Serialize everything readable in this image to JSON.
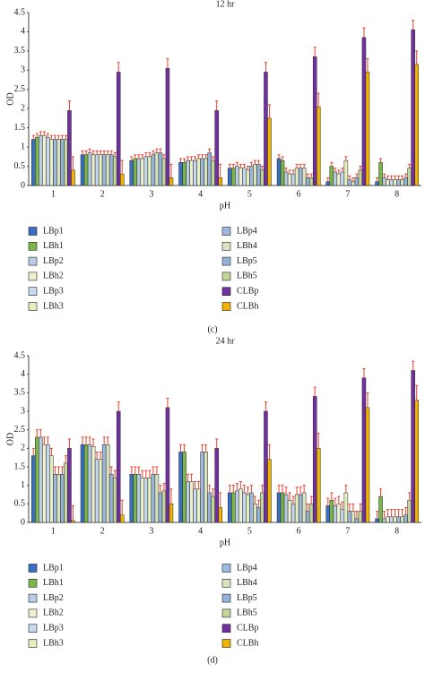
{
  "chart_data": [
    {
      "type": "bar",
      "title": "12 hr",
      "x_label": "pH",
      "y_label": "OD",
      "panel_label": "(c)",
      "categories": [
        "1",
        "2",
        "3",
        "4",
        "5",
        "6",
        "7",
        "8"
      ],
      "ylim": [
        0,
        4.5
      ],
      "yticks": [
        0,
        0.5,
        1,
        1.5,
        2,
        2.5,
        3,
        3.5,
        4,
        4.5
      ],
      "grid": false,
      "error_color": "#e8412c",
      "series": [
        {
          "name": "LBp1",
          "color": "#3a6fc4",
          "values": [
            1.2,
            0.8,
            0.65,
            0.6,
            0.45,
            0.7,
            0.1,
            0.1
          ],
          "errors": [
            0.1,
            0.1,
            0.1,
            0.1,
            0.1,
            0.1,
            0.1,
            0.1
          ]
        },
        {
          "name": "LBh1",
          "color": "#7ab648",
          "values": [
            1.25,
            0.8,
            0.7,
            0.6,
            0.45,
            0.65,
            0.5,
            0.6
          ],
          "errors": [
            0.1,
            0.1,
            0.1,
            0.1,
            0.1,
            0.1,
            0.1,
            0.1
          ]
        },
        {
          "name": "LBp2",
          "color": "#b8cce4",
          "values": [
            1.3,
            0.85,
            0.7,
            0.65,
            0.5,
            0.35,
            0.35,
            0.2
          ],
          "errors": [
            0.1,
            0.1,
            0.1,
            0.1,
            0.1,
            0.1,
            0.1,
            0.1
          ]
        },
        {
          "name": "LBh2",
          "color": "#eef0d0",
          "values": [
            1.3,
            0.8,
            0.7,
            0.65,
            0.45,
            0.3,
            0.3,
            0.15
          ],
          "errors": [
            0.1,
            0.1,
            0.1,
            0.1,
            0.1,
            0.1,
            0.1,
            0.1
          ]
        },
        {
          "name": "LBp3",
          "color": "#c5d9f1",
          "values": [
            1.25,
            0.8,
            0.75,
            0.65,
            0.45,
            0.3,
            0.35,
            0.15
          ],
          "errors": [
            0.1,
            0.1,
            0.1,
            0.1,
            0.1,
            0.1,
            0.1,
            0.1
          ]
        },
        {
          "name": "LBh3",
          "color": "#e4efc0",
          "values": [
            1.2,
            0.8,
            0.75,
            0.7,
            0.4,
            0.45,
            0.65,
            0.15
          ],
          "errors": [
            0.1,
            0.1,
            0.1,
            0.1,
            0.1,
            0.1,
            0.1,
            0.1
          ]
        },
        {
          "name": "LBp4",
          "color": "#9fb8e0",
          "values": [
            1.2,
            0.8,
            0.8,
            0.7,
            0.5,
            0.45,
            0.15,
            0.15
          ],
          "errors": [
            0.1,
            0.1,
            0.1,
            0.1,
            0.1,
            0.1,
            0.1,
            0.1
          ]
        },
        {
          "name": "LBh4",
          "color": "#d7e4bd",
          "values": [
            1.2,
            0.8,
            0.85,
            0.7,
            0.55,
            0.45,
            0.1,
            0.15
          ],
          "errors": [
            0.1,
            0.1,
            0.1,
            0.1,
            0.1,
            0.1,
            0.1,
            0.1
          ]
        },
        {
          "name": "LBp5",
          "color": "#95b3d7",
          "values": [
            1.2,
            0.8,
            0.85,
            0.85,
            0.55,
            0.2,
            0.2,
            0.2
          ],
          "errors": [
            0.1,
            0.1,
            0.1,
            0.1,
            0.1,
            0.1,
            0.1,
            0.1
          ]
        },
        {
          "name": "LBh5",
          "color": "#c3d69b",
          "values": [
            1.2,
            0.75,
            0.7,
            0.65,
            0.4,
            0.2,
            0.4,
            0.45
          ],
          "errors": [
            0.1,
            0.1,
            0.1,
            0.1,
            0.1,
            0.1,
            0.1,
            0.1
          ]
        },
        {
          "name": "CLBp",
          "color": "#7030a0",
          "values": [
            1.95,
            2.95,
            3.05,
            1.95,
            2.95,
            3.35,
            3.85,
            4.05
          ],
          "errors": [
            0.25,
            0.25,
            0.25,
            0.25,
            0.25,
            0.25,
            0.25,
            0.25
          ]
        },
        {
          "name": "CLBh",
          "color": "#f0b400",
          "values": [
            0.4,
            0.3,
            0.2,
            0.2,
            1.75,
            2.05,
            2.95,
            3.15
          ],
          "errors": [
            0.35,
            0.35,
            0.35,
            0.35,
            0.35,
            0.35,
            0.35,
            0.35
          ]
        }
      ]
    },
    {
      "type": "bar",
      "title": "24 hr",
      "x_label": "pH",
      "y_label": "OD",
      "panel_label": "(d)",
      "categories": [
        "1",
        "2",
        "3",
        "4",
        "5",
        "6",
        "7",
        "8"
      ],
      "ylim": [
        0,
        4.5
      ],
      "yticks": [
        0,
        0.5,
        1,
        1.5,
        2,
        2.5,
        3,
        3.5,
        4,
        4.5
      ],
      "grid": false,
      "error_color": "#e8412c",
      "series": [
        {
          "name": "LBp1",
          "color": "#3a6fc4",
          "values": [
            1.8,
            2.1,
            1.3,
            1.9,
            0.8,
            0.8,
            0.45,
            0.1
          ],
          "errors": [
            0.2,
            0.2,
            0.2,
            0.2,
            0.2,
            0.2,
            0.2,
            0.2
          ]
        },
        {
          "name": "LBh1",
          "color": "#7ab648",
          "values": [
            2.3,
            2.1,
            1.3,
            1.9,
            0.8,
            0.8,
            0.6,
            0.7
          ],
          "errors": [
            0.2,
            0.2,
            0.2,
            0.2,
            0.2,
            0.2,
            0.2,
            0.2
          ]
        },
        {
          "name": "LBp2",
          "color": "#b8cce4",
          "values": [
            2.3,
            2.1,
            1.3,
            1.1,
            0.85,
            0.75,
            0.45,
            0.1
          ],
          "errors": [
            0.2,
            0.2,
            0.2,
            0.2,
            0.2,
            0.2,
            0.2,
            0.2
          ]
        },
        {
          "name": "LBh2",
          "color": "#eef0d0",
          "values": [
            2.1,
            2.05,
            1.2,
            1.1,
            0.9,
            0.6,
            0.5,
            0.15
          ],
          "errors": [
            0.2,
            0.2,
            0.2,
            0.2,
            0.2,
            0.2,
            0.2,
            0.2
          ]
        },
        {
          "name": "LBp3",
          "color": "#c5d9f1",
          "values": [
            2.1,
            1.7,
            1.2,
            0.9,
            0.8,
            0.5,
            0.35,
            0.15
          ],
          "errors": [
            0.2,
            0.2,
            0.2,
            0.2,
            0.2,
            0.2,
            0.2,
            0.2
          ]
        },
        {
          "name": "LBh3",
          "color": "#e4efc0",
          "values": [
            1.8,
            1.7,
            1.2,
            0.9,
            0.75,
            0.75,
            0.8,
            0.15
          ],
          "errors": [
            0.2,
            0.2,
            0.2,
            0.2,
            0.2,
            0.2,
            0.2,
            0.2
          ]
        },
        {
          "name": "LBp4",
          "color": "#9fb8e0",
          "values": [
            1.3,
            2.1,
            1.3,
            1.9,
            0.8,
            0.75,
            0.3,
            0.15
          ],
          "errors": [
            0.2,
            0.2,
            0.2,
            0.2,
            0.2,
            0.2,
            0.2,
            0.2
          ]
        },
        {
          "name": "LBh4",
          "color": "#d7e4bd",
          "values": [
            1.3,
            2.1,
            1.3,
            1.9,
            0.5,
            0.8,
            0.3,
            0.15
          ],
          "errors": [
            0.2,
            0.2,
            0.2,
            0.2,
            0.2,
            0.2,
            0.2,
            0.2
          ]
        },
        {
          "name": "LBp5",
          "color": "#95b3d7",
          "values": [
            1.3,
            1.3,
            0.8,
            0.8,
            0.4,
            0.3,
            0.1,
            0.2
          ],
          "errors": [
            0.2,
            0.2,
            0.2,
            0.2,
            0.2,
            0.2,
            0.2,
            0.2
          ]
        },
        {
          "name": "LBh5",
          "color": "#c3d69b",
          "values": [
            1.6,
            1.2,
            0.85,
            0.7,
            0.8,
            0.5,
            0.3,
            0.6
          ],
          "errors": [
            0.2,
            0.2,
            0.2,
            0.2,
            0.2,
            0.2,
            0.2,
            0.2
          ]
        },
        {
          "name": "CLBp",
          "color": "#7030a0",
          "values": [
            2.0,
            3.0,
            3.1,
            2.0,
            3.0,
            3.4,
            3.9,
            4.1
          ],
          "errors": [
            0.25,
            0.25,
            0.25,
            0.25,
            0.25,
            0.25,
            0.25,
            0.25
          ]
        },
        {
          "name": "CLBh",
          "color": "#f0b400",
          "values": [
            0.05,
            0.2,
            0.5,
            0.4,
            1.7,
            2.0,
            3.1,
            3.3
          ],
          "errors": [
            0.4,
            0.4,
            0.4,
            0.4,
            0.4,
            0.4,
            0.4,
            0.4
          ]
        }
      ]
    }
  ]
}
